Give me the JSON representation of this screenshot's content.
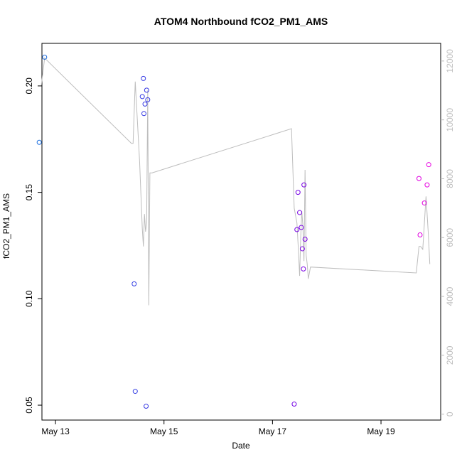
{
  "chart_data": {
    "type": "scatter",
    "title": "ATOM4 Northbound fCO2_PM1_AMS",
    "xlabel": "Date",
    "ylabel": "fCO2_PM1_AMS",
    "xlim": [
      12.75,
      20.1
    ],
    "ylim": [
      0.043,
      0.22
    ],
    "x_ticks": [
      {
        "value": 13,
        "label": "May 13"
      },
      {
        "value": 15,
        "label": "May 15"
      },
      {
        "value": 17,
        "label": "May 17"
      },
      {
        "value": 19,
        "label": "May 19"
      }
    ],
    "y_ticks": [
      {
        "value": 0.05,
        "label": "0.05"
      },
      {
        "value": 0.1,
        "label": "0.10"
      },
      {
        "value": 0.15,
        "label": "0.15"
      },
      {
        "value": 0.2,
        "label": "0.20"
      }
    ],
    "y2lim": [
      -200,
      12600
    ],
    "y2_ticks": [
      {
        "value": 0,
        "label": "0"
      },
      {
        "value": 2000,
        "label": "2000"
      },
      {
        "value": 4000,
        "label": "4000"
      },
      {
        "value": 6000,
        "label": "6000"
      },
      {
        "value": 8000,
        "label": "8000"
      },
      {
        "value": 10000,
        "label": "10000"
      },
      {
        "value": 12000,
        "label": "12000"
      }
    ],
    "grid": false,
    "legend": "none",
    "series": [
      {
        "marker": "open-circle",
        "color_scale": "blue-to-magenta by date",
        "points": [
          {
            "x": 12.7,
            "y": 0.1735
          },
          {
            "x": 12.8,
            "y": 0.2135
          },
          {
            "x": 14.45,
            "y": 0.107
          },
          {
            "x": 14.47,
            "y": 0.0565
          },
          {
            "x": 14.6,
            "y": 0.195
          },
          {
            "x": 14.62,
            "y": 0.2035
          },
          {
            "x": 14.63,
            "y": 0.187
          },
          {
            "x": 14.65,
            "y": 0.1915
          },
          {
            "x": 14.67,
            "y": 0.0495
          },
          {
            "x": 14.68,
            "y": 0.198
          },
          {
            "x": 14.7,
            "y": 0.1935
          },
          {
            "x": 17.4,
            "y": 0.0505
          },
          {
            "x": 17.45,
            "y": 0.1325
          },
          {
            "x": 17.47,
            "y": 0.15
          },
          {
            "x": 17.5,
            "y": 0.1405
          },
          {
            "x": 17.53,
            "y": 0.1335
          },
          {
            "x": 17.55,
            "y": 0.1235
          },
          {
            "x": 17.57,
            "y": 0.114
          },
          {
            "x": 17.58,
            "y": 0.1535
          },
          {
            "x": 17.6,
            "y": 0.128
          },
          {
            "x": 19.7,
            "y": 0.1565
          },
          {
            "x": 19.72,
            "y": 0.13
          },
          {
            "x": 19.8,
            "y": 0.145
          },
          {
            "x": 19.85,
            "y": 0.1535
          },
          {
            "x": 19.88,
            "y": 0.163
          }
        ]
      },
      {
        "type": "line",
        "axis": "right",
        "color": "#bdbdbd",
        "points": [
          {
            "x": 12.74,
            "y": 11200
          },
          {
            "x": 12.8,
            "y": 12100
          },
          {
            "x": 14.4,
            "y": 9200
          },
          {
            "x": 14.43,
            "y": 9200
          },
          {
            "x": 14.47,
            "y": 11300
          },
          {
            "x": 14.55,
            "y": 8600
          },
          {
            "x": 14.6,
            "y": 6300
          },
          {
            "x": 14.62,
            "y": 5700
          },
          {
            "x": 14.64,
            "y": 6800
          },
          {
            "x": 14.66,
            "y": 6200
          },
          {
            "x": 14.68,
            "y": 6500
          },
          {
            "x": 14.7,
            "y": 11000
          },
          {
            "x": 14.72,
            "y": 3700
          },
          {
            "x": 14.74,
            "y": 8200
          },
          {
            "x": 14.78,
            "y": 8200
          },
          {
            "x": 17.35,
            "y": 9700
          },
          {
            "x": 17.4,
            "y": 7000
          },
          {
            "x": 17.45,
            "y": 6500
          },
          {
            "x": 17.48,
            "y": 5500
          },
          {
            "x": 17.5,
            "y": 4700
          },
          {
            "x": 17.52,
            "y": 6000
          },
          {
            "x": 17.54,
            "y": 6900
          },
          {
            "x": 17.56,
            "y": 6400
          },
          {
            "x": 17.58,
            "y": 5200
          },
          {
            "x": 17.6,
            "y": 8300
          },
          {
            "x": 17.62,
            "y": 5400
          },
          {
            "x": 17.64,
            "y": 5100
          },
          {
            "x": 17.66,
            "y": 4600
          },
          {
            "x": 17.7,
            "y": 5000
          },
          {
            "x": 19.65,
            "y": 4800
          },
          {
            "x": 19.7,
            "y": 5700
          },
          {
            "x": 19.73,
            "y": 5700
          },
          {
            "x": 19.77,
            "y": 5600
          },
          {
            "x": 19.83,
            "y": 7400
          },
          {
            "x": 19.87,
            "y": 6200
          },
          {
            "x": 19.9,
            "y": 5100
          }
        ]
      }
    ]
  }
}
